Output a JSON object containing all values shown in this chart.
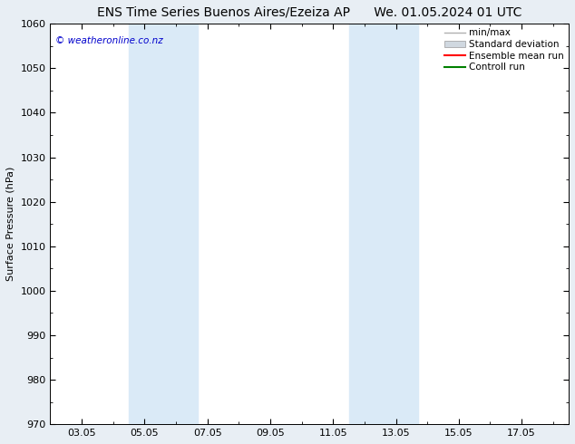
{
  "title_left": "ENS Time Series Buenos Aires/Ezeiza AP",
  "title_right": "We. 01.05.2024 01 UTC",
  "ylabel": "Surface Pressure (hPa)",
  "ylim": [
    970,
    1060
  ],
  "yticks": [
    970,
    980,
    990,
    1000,
    1010,
    1020,
    1030,
    1040,
    1050,
    1060
  ],
  "x_min": 1.0,
  "x_max": 17.5,
  "xtick_labels": [
    "03.05",
    "05.05",
    "07.05",
    "09.05",
    "11.05",
    "13.05",
    "15.05",
    "17.05"
  ],
  "xtick_positions": [
    2,
    4,
    6,
    8,
    10,
    12,
    14,
    16
  ],
  "shaded_bands": [
    {
      "x_start": 3.5,
      "x_end": 5.7,
      "color": "#daeaf7"
    },
    {
      "x_start": 10.5,
      "x_end": 12.7,
      "color": "#daeaf7"
    }
  ],
  "watermark_text": "© weatheronline.co.nz",
  "watermark_color": "#0000cc",
  "legend_entries": [
    {
      "label": "min/max",
      "color": "#b0b0b0",
      "lw": 1.0,
      "type": "line"
    },
    {
      "label": "Standard deviation",
      "color": "#d0d8e0",
      "lw": 8,
      "type": "bar"
    },
    {
      "label": "Ensemble mean run",
      "color": "#ff0000",
      "lw": 1.5,
      "type": "line"
    },
    {
      "label": "Controll run",
      "color": "#008000",
      "lw": 1.5,
      "type": "line"
    }
  ],
  "fig_bg_color": "#e8eef4",
  "plot_bg_color": "#ffffff",
  "title_fontsize": 10,
  "axis_label_fontsize": 8,
  "tick_fontsize": 8,
  "legend_fontsize": 7.5,
  "watermark_fontsize": 7.5
}
